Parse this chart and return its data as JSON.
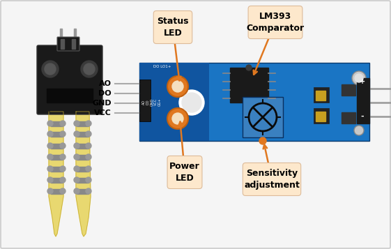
{
  "background_color": "#f5f5f5",
  "border_color": "#cccccc",
  "annotation_box_color": "#fde8cc",
  "arrow_color": "#e07820",
  "labels": {
    "status_led": "Status\nLED",
    "lm393": "LM393\nComparator",
    "power_led": "Power\nLED",
    "sensitivity": "Sensitivity\nadjustment"
  },
  "pin_labels": [
    "AO",
    "DO",
    "GND",
    "VCC"
  ],
  "board_blue": "#1a75c4",
  "board_dark": "#1055a0",
  "sensor_body_color": "#1a1a1a",
  "sensor_prong_fill": "#e8d870",
  "sensor_prong_edge": "#c4aa30",
  "fig_width": 5.61,
  "fig_height": 3.57,
  "dpi": 100
}
